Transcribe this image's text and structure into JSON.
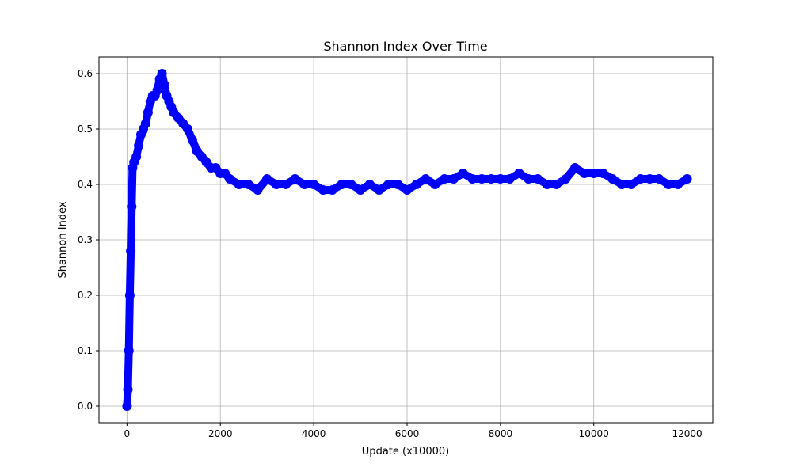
{
  "chart_data": {
    "type": "scatter",
    "title": "Shannon Index Over Time",
    "xlabel": "Update (x10000)",
    "ylabel": "Shannon Index",
    "xlim": [
      -600,
      12550
    ],
    "ylim": [
      -0.03,
      0.63
    ],
    "xticks": [
      0,
      2000,
      4000,
      6000,
      8000,
      10000,
      12000
    ],
    "yticks": [
      0.0,
      0.1,
      0.2,
      0.3,
      0.4,
      0.5,
      0.6
    ],
    "xtick_labels": [
      "0",
      "2000",
      "4000",
      "6000",
      "8000",
      "10000",
      "12000"
    ],
    "ytick_labels": [
      "0.0",
      "0.1",
      "0.2",
      "0.3",
      "0.4",
      "0.5",
      "0.6"
    ],
    "grid": true,
    "marker": "circle",
    "color": "#0000ff",
    "series": [
      {
        "x": [
          0,
          20,
          40,
          60,
          80,
          100,
          120,
          150,
          200,
          250,
          300,
          350,
          400,
          450,
          500,
          550,
          600,
          650,
          700,
          750,
          800,
          850,
          900,
          950,
          1000,
          1100,
          1200,
          1300,
          1400,
          1500,
          1600,
          1700,
          1800,
          1900,
          2000,
          2100,
          2200,
          2400,
          2600,
          2800,
          3000,
          3200,
          3400,
          3600,
          3800,
          4000,
          4200,
          4400,
          4600,
          4800,
          5000,
          5200,
          5400,
          5600,
          5800,
          6000,
          6200,
          6400,
          6600,
          6800,
          7000,
          7200,
          7400,
          7600,
          7800,
          8000,
          8200,
          8400,
          8600,
          8800,
          9000,
          9200,
          9400,
          9600,
          9800,
          10000,
          10200,
          10400,
          10600,
          10800,
          11000,
          11200,
          11400,
          11600,
          11800,
          12000
        ],
        "y": [
          0.0,
          0.03,
          0.1,
          0.2,
          0.28,
          0.36,
          0.43,
          0.44,
          0.45,
          0.47,
          0.49,
          0.5,
          0.51,
          0.53,
          0.55,
          0.56,
          0.56,
          0.57,
          0.59,
          0.6,
          0.58,
          0.56,
          0.55,
          0.54,
          0.53,
          0.52,
          0.51,
          0.5,
          0.48,
          0.46,
          0.45,
          0.44,
          0.43,
          0.43,
          0.42,
          0.42,
          0.41,
          0.4,
          0.4,
          0.39,
          0.41,
          0.4,
          0.4,
          0.41,
          0.4,
          0.4,
          0.39,
          0.39,
          0.4,
          0.4,
          0.39,
          0.4,
          0.39,
          0.4,
          0.4,
          0.39,
          0.4,
          0.41,
          0.4,
          0.41,
          0.41,
          0.42,
          0.41,
          0.41,
          0.41,
          0.41,
          0.41,
          0.42,
          0.41,
          0.41,
          0.4,
          0.4,
          0.41,
          0.43,
          0.42,
          0.42,
          0.42,
          0.41,
          0.4,
          0.4,
          0.41,
          0.41,
          0.41,
          0.4,
          0.4,
          0.41
        ]
      }
    ]
  }
}
